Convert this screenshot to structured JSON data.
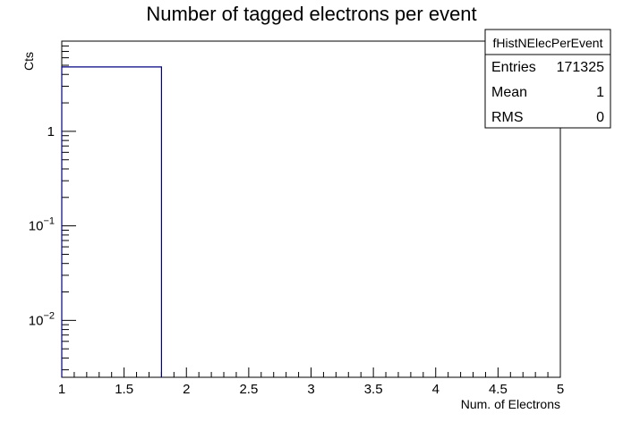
{
  "chart_data": {
    "type": "bar",
    "title": "Number of tagged electrons per event",
    "xlabel": "Num. of Electrons",
    "ylabel": "Cts",
    "xlim": [
      1,
      5
    ],
    "ylim": [
      0.0025,
      9
    ],
    "yscale": "log",
    "x_ticks": [
      {
        "value": 1,
        "label": "1"
      },
      {
        "value": 1.5,
        "label": "1.5"
      },
      {
        "value": 2,
        "label": "2"
      },
      {
        "value": 2.5,
        "label": "2.5"
      },
      {
        "value": 3,
        "label": "3"
      },
      {
        "value": 3.5,
        "label": "3.5"
      },
      {
        "value": 4,
        "label": "4"
      },
      {
        "value": 4.5,
        "label": "4.5"
      },
      {
        "value": 5,
        "label": "5"
      }
    ],
    "y_ticks": [
      {
        "value": 1,
        "base": "1",
        "exp": ""
      },
      {
        "value": 0.1,
        "base": "10",
        "exp": "−1"
      },
      {
        "value": 0.01,
        "base": "10",
        "exp": "−2"
      }
    ],
    "bins": [
      {
        "x_low": 1.0,
        "x_high": 1.8,
        "value": 4.8
      }
    ],
    "line_color": "#000080",
    "stats_box": {
      "name": "fHistNElecPerEvent",
      "position": "top-right",
      "rows": [
        {
          "label": "Entries",
          "value": "171325"
        },
        {
          "label": "Mean",
          "value": "1"
        },
        {
          "label": "RMS",
          "value": "0"
        }
      ]
    }
  }
}
